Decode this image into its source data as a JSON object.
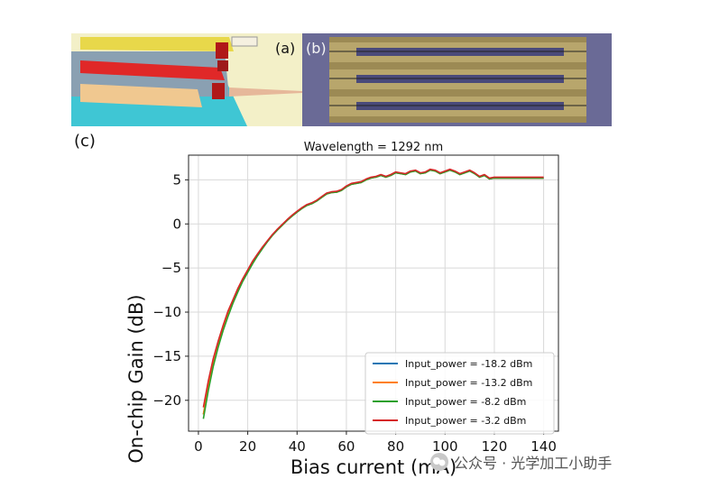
{
  "panel_labels": {
    "a": "(a)",
    "b": "(b)",
    "c": "(c)"
  },
  "watermark": "公众号 · 光学加工小助手",
  "chart_data": {
    "type": "line",
    "title": "Wavelength = 1292 nm",
    "xlabel": "Bias current (mA)",
    "ylabel": "On-chip Gain (dB)",
    "xlim": [
      -4,
      146
    ],
    "ylim": [
      -23.5,
      7.8
    ],
    "xticks": [
      0,
      20,
      40,
      60,
      80,
      100,
      120,
      140
    ],
    "yticks": [
      5,
      0,
      -5,
      -10,
      -15,
      -20
    ],
    "ytick_labels": [
      "5",
      "0",
      "−5",
      "−10",
      "−15",
      "−20"
    ],
    "grid": true,
    "legend_position": "bottom-right",
    "x": [
      2,
      4,
      6,
      8,
      10,
      12,
      14,
      16,
      18,
      20,
      22,
      24,
      26,
      28,
      30,
      32,
      34,
      36,
      38,
      40,
      42,
      44,
      46,
      48,
      50,
      52,
      54,
      56,
      58,
      60,
      62,
      64,
      66,
      68,
      70,
      72,
      74,
      76,
      78,
      80,
      82,
      84,
      86,
      88,
      90,
      92,
      94,
      96,
      98,
      100,
      102,
      104,
      106,
      108,
      110,
      112,
      114,
      116,
      118,
      120,
      122,
      124,
      126,
      128,
      130,
      132,
      134,
      136,
      138,
      140
    ],
    "series": [
      {
        "name": "Input_power = -18.2 dBm",
        "color": "#1f77b4",
        "values": [
          -21.6,
          -18.5,
          -15.9,
          -13.8,
          -11.9,
          -10.3,
          -8.9,
          -7.6,
          -6.4,
          -5.4,
          -4.4,
          -3.5,
          -2.7,
          -2.0,
          -1.3,
          -0.7,
          -0.15,
          0.4,
          0.9,
          1.35,
          1.75,
          2.1,
          2.3,
          2.6,
          3.0,
          3.4,
          3.55,
          3.6,
          3.8,
          4.2,
          4.5,
          4.6,
          4.7,
          5.0,
          5.2,
          5.3,
          5.5,
          5.3,
          5.5,
          5.8,
          5.7,
          5.6,
          5.9,
          6.0,
          5.7,
          5.8,
          6.1,
          6.0,
          5.7,
          5.9,
          6.1,
          5.9,
          5.6,
          5.8,
          6.0,
          5.7,
          5.3,
          5.5,
          5.1,
          5.2,
          5.2,
          5.2,
          5.2,
          5.2,
          5.2,
          5.2,
          5.2,
          5.2,
          5.2,
          5.2
        ]
      },
      {
        "name": "Input_power = -13.2 dBm",
        "color": "#ff7f0e",
        "values": [
          -21.6,
          -18.5,
          -15.9,
          -13.8,
          -11.9,
          -10.3,
          -8.9,
          -7.6,
          -6.4,
          -5.4,
          -4.4,
          -3.5,
          -2.7,
          -2.0,
          -1.3,
          -0.7,
          -0.15,
          0.4,
          0.9,
          1.35,
          1.75,
          2.1,
          2.3,
          2.6,
          3.0,
          3.4,
          3.55,
          3.6,
          3.8,
          4.2,
          4.5,
          4.6,
          4.7,
          5.0,
          5.2,
          5.3,
          5.5,
          5.3,
          5.5,
          5.8,
          5.7,
          5.6,
          5.9,
          6.0,
          5.7,
          5.8,
          6.1,
          6.0,
          5.7,
          5.9,
          6.1,
          5.9,
          5.6,
          5.8,
          6.0,
          5.7,
          5.3,
          5.5,
          5.1,
          5.2,
          5.2,
          5.2,
          5.2,
          5.2,
          5.2,
          5.2,
          5.2,
          5.2,
          5.2,
          5.2
        ]
      },
      {
        "name": "Input_power = -8.2 dBm",
        "color": "#2ca02c",
        "values": [
          -22.1,
          -18.9,
          -16.2,
          -14.0,
          -12.1,
          -10.5,
          -9.0,
          -7.7,
          -6.5,
          -5.5,
          -4.5,
          -3.6,
          -2.8,
          -2.0,
          -1.3,
          -0.7,
          -0.15,
          0.4,
          0.9,
          1.35,
          1.75,
          2.1,
          2.3,
          2.6,
          3.0,
          3.4,
          3.55,
          3.6,
          3.8,
          4.2,
          4.5,
          4.6,
          4.7,
          5.0,
          5.2,
          5.3,
          5.5,
          5.3,
          5.5,
          5.8,
          5.7,
          5.6,
          5.9,
          6.0,
          5.7,
          5.8,
          6.1,
          6.0,
          5.7,
          5.9,
          6.1,
          5.9,
          5.6,
          5.8,
          6.0,
          5.7,
          5.3,
          5.5,
          5.1,
          5.2,
          5.2,
          5.2,
          5.2,
          5.2,
          5.2,
          5.2,
          5.2,
          5.2,
          5.2,
          5.2
        ]
      },
      {
        "name": "Input_power = -3.2 dBm",
        "color": "#d62728",
        "values": [
          -20.8,
          -17.8,
          -15.3,
          -13.3,
          -11.5,
          -9.9,
          -8.6,
          -7.3,
          -6.2,
          -5.2,
          -4.2,
          -3.4,
          -2.6,
          -1.9,
          -1.2,
          -0.6,
          -0.05,
          0.5,
          1.0,
          1.45,
          1.85,
          2.2,
          2.4,
          2.7,
          3.1,
          3.5,
          3.65,
          3.7,
          3.9,
          4.3,
          4.6,
          4.7,
          4.8,
          5.1,
          5.3,
          5.4,
          5.6,
          5.4,
          5.6,
          5.9,
          5.8,
          5.7,
          6.0,
          6.1,
          5.8,
          5.9,
          6.2,
          6.1,
          5.8,
          6.0,
          6.2,
          6.0,
          5.7,
          5.9,
          6.1,
          5.8,
          5.4,
          5.6,
          5.2,
          5.3,
          5.3,
          5.3,
          5.3,
          5.3,
          5.3,
          5.3,
          5.3,
          5.3,
          5.3,
          5.3
        ]
      }
    ]
  }
}
